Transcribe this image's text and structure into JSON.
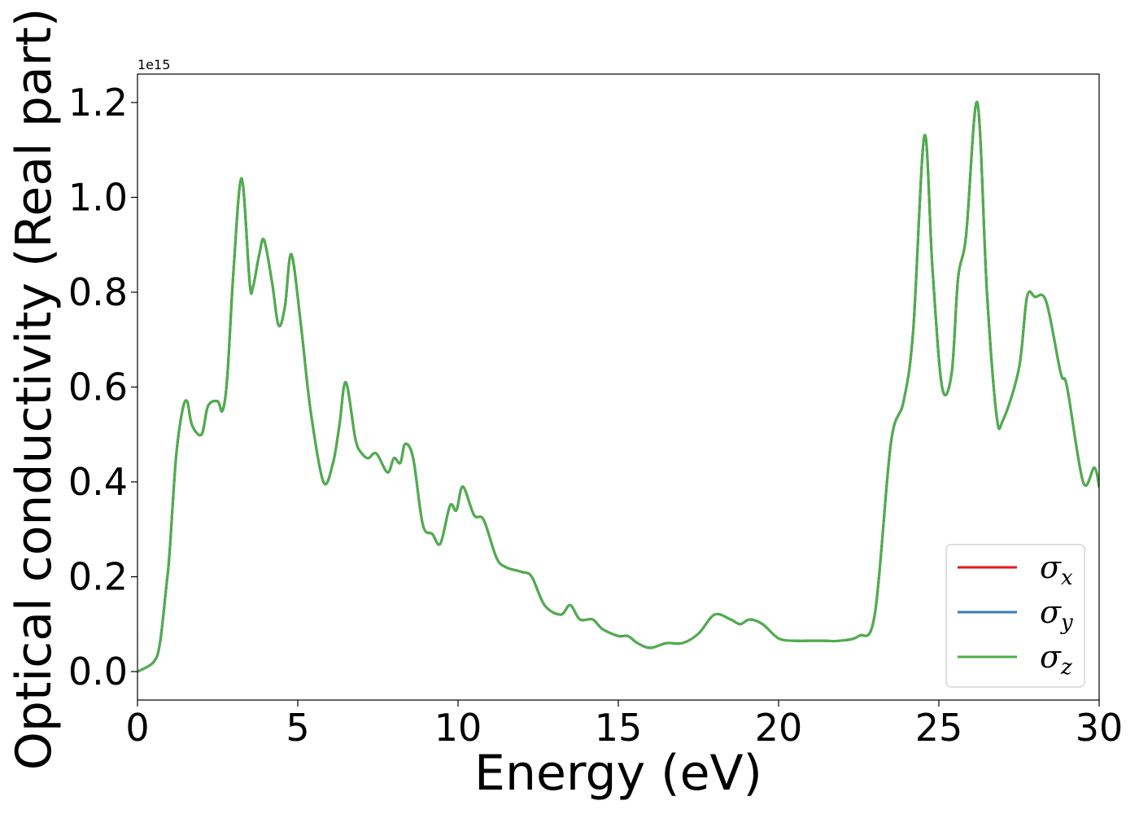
{
  "chart_data": {
    "type": "line",
    "xlabel": "Energy (eV)",
    "ylabel": "Optical conductivity (Real part)",
    "y_offset_label": "1e15",
    "xlim": [
      0,
      30
    ],
    "ylim": [
      -0.06,
      1.26
    ],
    "x_ticks": [
      0,
      5,
      10,
      15,
      20,
      25,
      30
    ],
    "x_tick_labels": [
      "0",
      "5",
      "10",
      "15",
      "20",
      "25",
      "30"
    ],
    "y_ticks": [
      0.0,
      0.2,
      0.4,
      0.6,
      0.8,
      1.0,
      1.2
    ],
    "y_tick_labels": [
      "0.0",
      "0.2",
      "0.4",
      "0.6",
      "0.8",
      "1.0",
      "1.2"
    ],
    "grid": false,
    "legend_position": "lower right",
    "series": [
      {
        "name": "σx",
        "symbol": "σ",
        "subscript": "x",
        "color": "#e41a1c"
      },
      {
        "name": "σy",
        "symbol": "σ",
        "subscript": "y",
        "color": "#377eb8"
      },
      {
        "name": "σz",
        "symbol": "σ",
        "subscript": "z",
        "color": "#4daf4a"
      }
    ],
    "x": [
      0,
      0.5,
      0.7,
      0.9,
      1.0,
      1.2,
      1.4,
      1.55,
      1.7,
      2.0,
      2.2,
      2.5,
      2.65,
      2.8,
      3.0,
      3.25,
      3.5,
      3.6,
      3.8,
      3.95,
      4.2,
      4.4,
      4.6,
      4.8,
      5.1,
      5.4,
      5.8,
      6.1,
      6.3,
      6.5,
      6.8,
      7.0,
      7.2,
      7.45,
      7.8,
      8.0,
      8.2,
      8.35,
      8.6,
      8.9,
      9.2,
      9.45,
      9.75,
      9.95,
      10.15,
      10.5,
      10.8,
      11.2,
      11.5,
      12.0,
      12.3,
      12.7,
      13.2,
      13.5,
      13.8,
      14.2,
      14.5,
      15.0,
      15.3,
      15.6,
      16.0,
      16.5,
      17.0,
      17.5,
      18.0,
      18.5,
      18.8,
      19.1,
      19.5,
      20.0,
      20.5,
      21.0,
      21.4,
      21.9,
      22.5,
      23.0,
      23.5,
      23.9,
      24.2,
      24.55,
      24.8,
      25.1,
      25.4,
      25.6,
      25.85,
      26.2,
      26.5,
      26.8,
      27.0,
      27.5,
      27.75,
      28.0,
      28.35,
      28.8,
      29.0,
      29.5,
      29.85,
      30.0
    ],
    "y": [
      0.0,
      0.02,
      0.06,
      0.18,
      0.25,
      0.45,
      0.55,
      0.57,
      0.52,
      0.5,
      0.56,
      0.57,
      0.55,
      0.62,
      0.85,
      1.04,
      0.82,
      0.81,
      0.88,
      0.91,
      0.82,
      0.73,
      0.77,
      0.88,
      0.73,
      0.55,
      0.4,
      0.44,
      0.52,
      0.61,
      0.49,
      0.46,
      0.45,
      0.46,
      0.42,
      0.45,
      0.44,
      0.48,
      0.45,
      0.31,
      0.29,
      0.27,
      0.35,
      0.34,
      0.39,
      0.33,
      0.32,
      0.24,
      0.22,
      0.21,
      0.2,
      0.14,
      0.12,
      0.14,
      0.11,
      0.11,
      0.09,
      0.075,
      0.075,
      0.06,
      0.05,
      0.06,
      0.06,
      0.08,
      0.12,
      0.11,
      0.1,
      0.11,
      0.1,
      0.07,
      0.065,
      0.065,
      0.065,
      0.065,
      0.075,
      0.12,
      0.48,
      0.57,
      0.72,
      1.13,
      0.85,
      0.6,
      0.63,
      0.83,
      0.92,
      1.2,
      0.8,
      0.54,
      0.53,
      0.64,
      0.79,
      0.79,
      0.78,
      0.63,
      0.6,
      0.4,
      0.43,
      0.39
    ]
  }
}
